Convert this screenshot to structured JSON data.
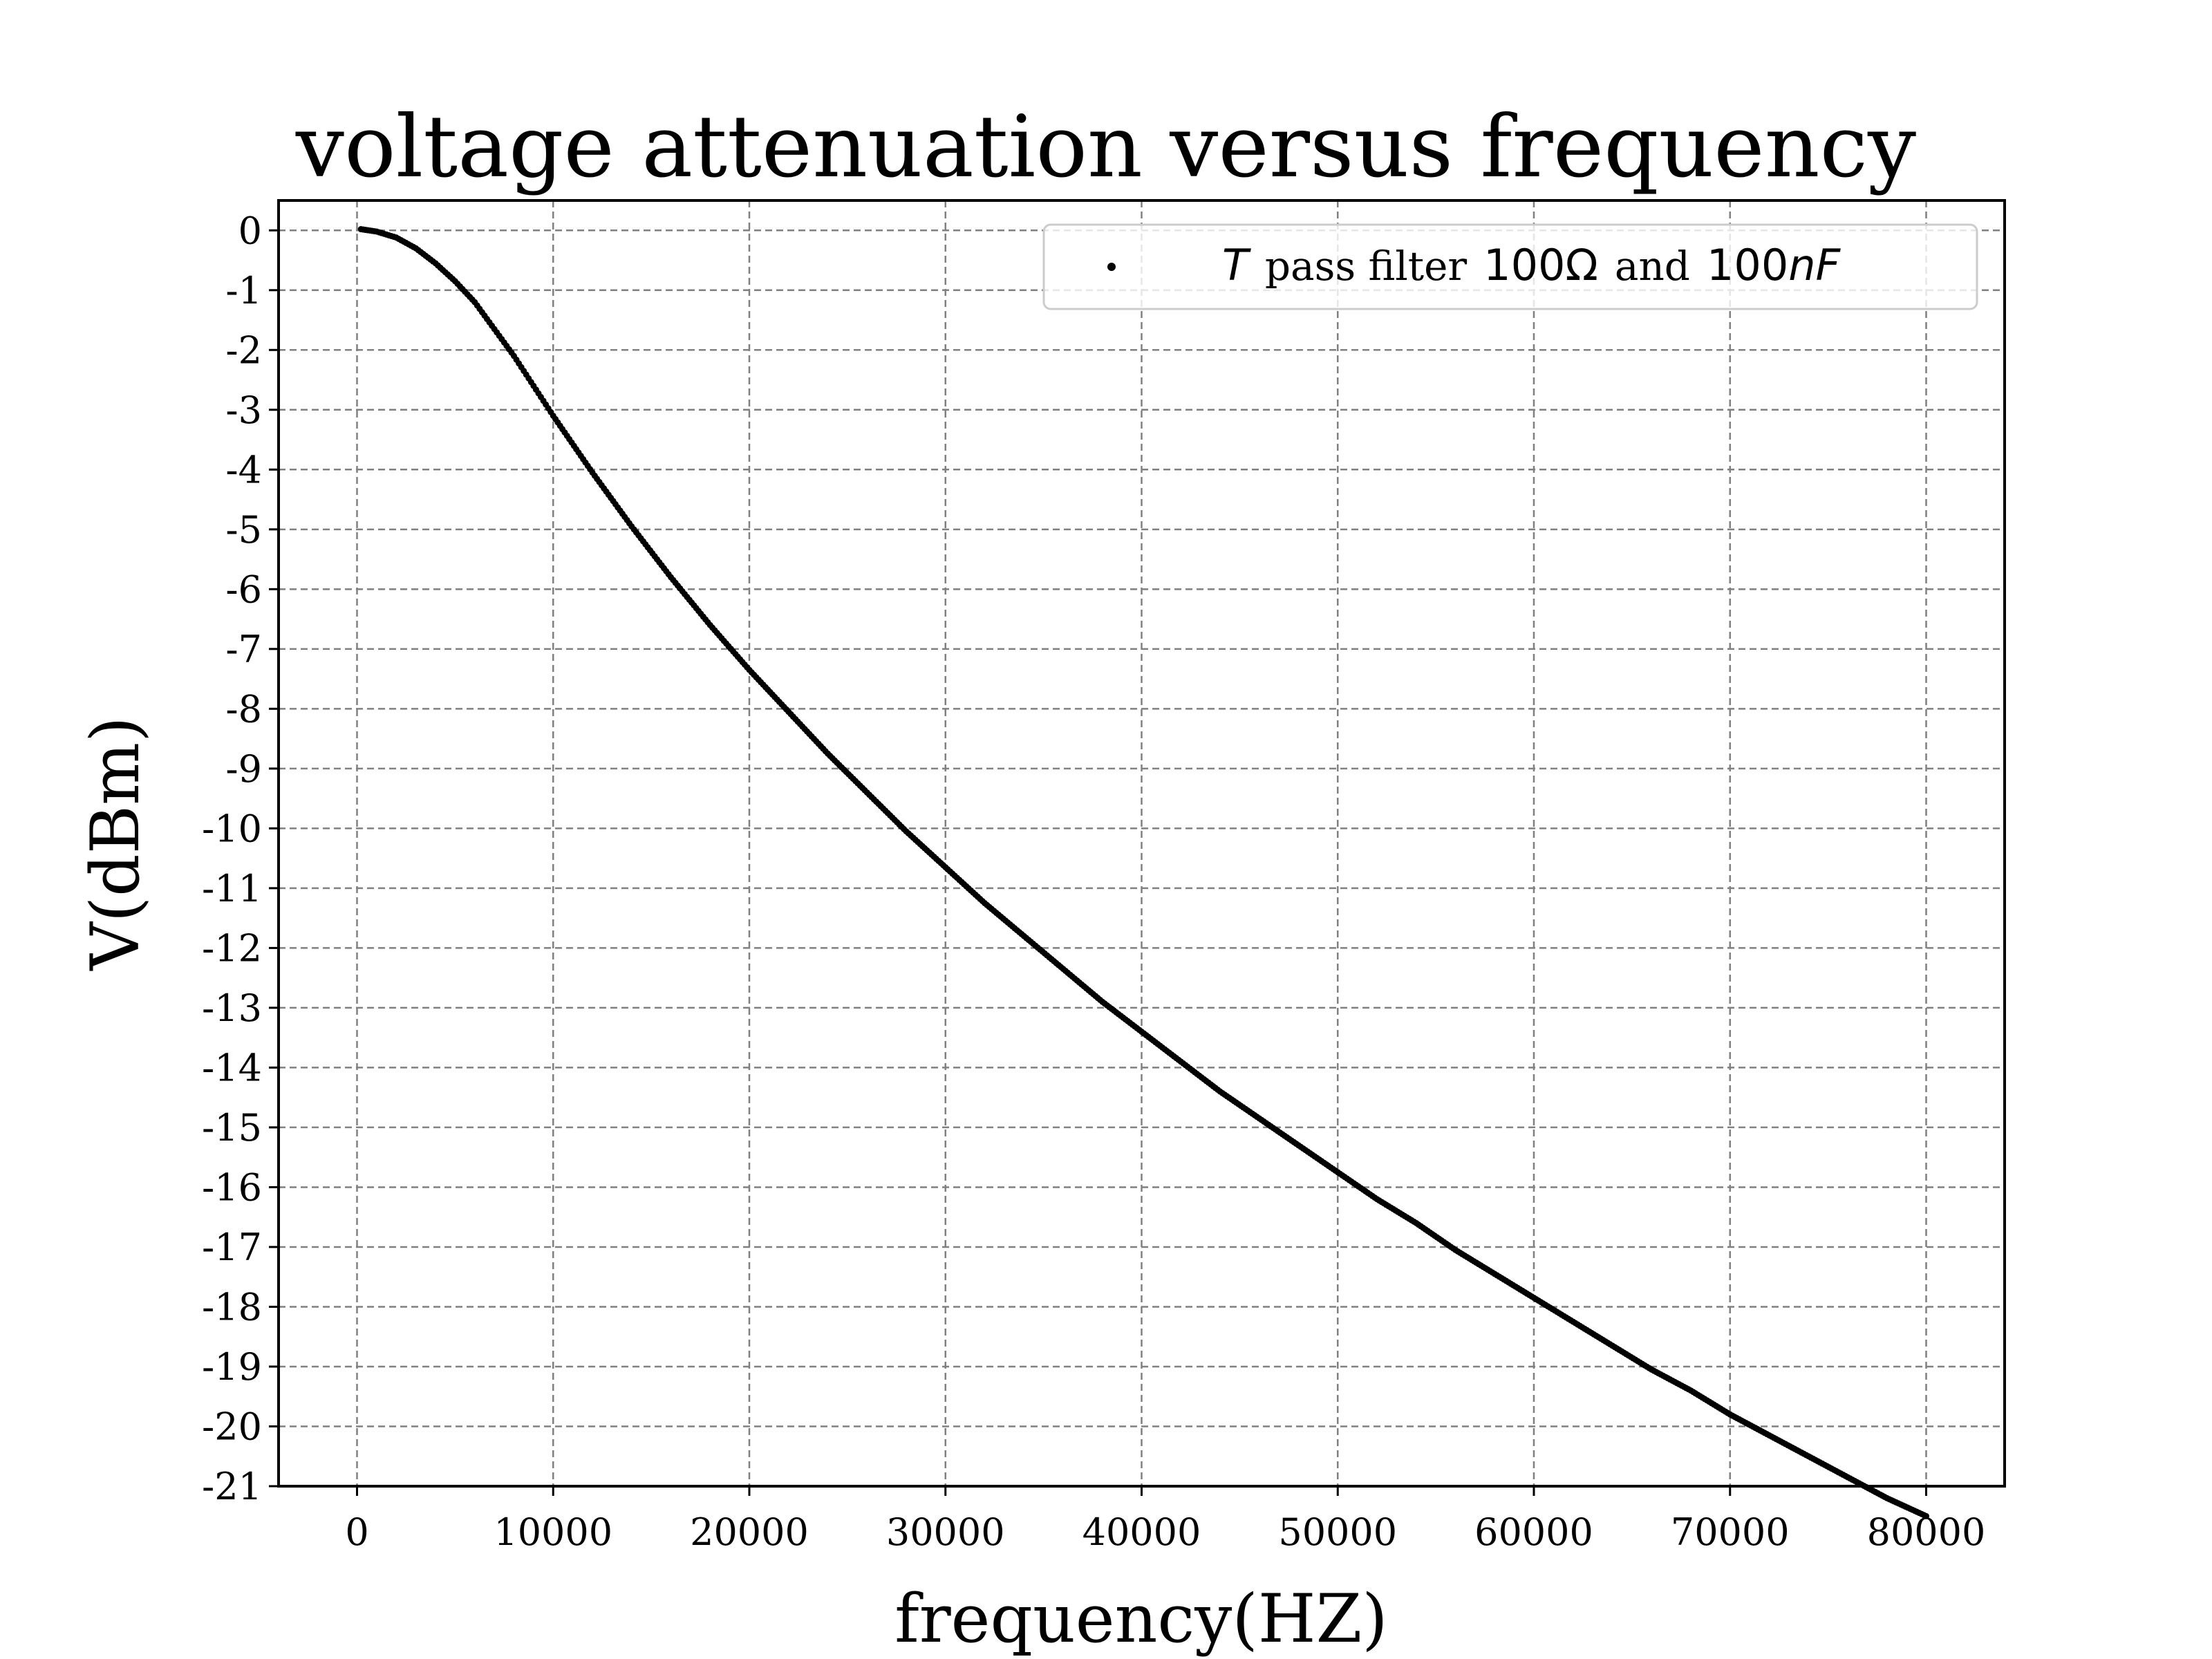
{
  "chart_data": {
    "type": "scatter",
    "title": "voltage attenuation versus frequency",
    "xlabel": "frequency(HZ)",
    "ylabel": "V(dBm)",
    "xlim": [
      -4000,
      84000
    ],
    "ylim": [
      -21,
      0.5
    ],
    "xticks": [
      0,
      10000,
      20000,
      30000,
      40000,
      50000,
      60000,
      70000,
      80000
    ],
    "xtick_labels": [
      "0",
      "10000",
      "20000",
      "30000",
      "40000",
      "50000",
      "60000",
      "70000",
      "80000"
    ],
    "yticks": [
      0,
      -1,
      -2,
      -3,
      -4,
      -5,
      -6,
      -7,
      -8,
      -9,
      -10,
      -11,
      -12,
      -13,
      -14,
      -15,
      -16,
      -17,
      -18,
      -19,
      -20,
      -21
    ],
    "ytick_labels": [
      "0",
      "-1",
      "-2",
      "-3",
      "-4",
      "-5",
      "-6",
      "-7",
      "-8",
      "-9",
      "-10",
      "-11",
      "-12",
      "-13",
      "-14",
      "-15",
      "-16",
      "-17",
      "-18",
      "-19",
      "-20",
      "-21"
    ],
    "grid": true,
    "legend_position": "top-right",
    "series": [
      {
        "name_parts": {
          "italic_symbol": "T",
          "text1": "pass filter",
          "value1": "100Ω",
          "text2": "and",
          "value2": "100",
          "value2_unit_italic": "nF"
        },
        "color": "#000000",
        "marker": "dot",
        "x": [
          200,
          1000,
          2000,
          3000,
          4000,
          5000,
          6000,
          7000,
          8000,
          9000,
          10000,
          12000,
          14000,
          16000,
          18000,
          20000,
          22000,
          24000,
          26000,
          28000,
          30000,
          32000,
          34000,
          36000,
          38000,
          40000,
          42000,
          44000,
          46000,
          48000,
          50000,
          52000,
          54000,
          56000,
          58000,
          60000,
          62000,
          64000,
          66000,
          68000,
          70000,
          72000,
          74000,
          76000,
          78000,
          80000
        ],
        "y": [
          0.02,
          -0.02,
          -0.12,
          -0.3,
          -0.55,
          -0.85,
          -1.2,
          -1.65,
          -2.1,
          -2.6,
          -3.1,
          -4.05,
          -4.95,
          -5.8,
          -6.6,
          -7.35,
          -8.05,
          -8.75,
          -9.4,
          -10.05,
          -10.65,
          -11.25,
          -11.8,
          -12.35,
          -12.9,
          -13.4,
          -13.9,
          -14.4,
          -14.85,
          -15.3,
          -15.75,
          -16.2,
          -16.6,
          -17.05,
          -17.45,
          -17.85,
          -18.25,
          -18.65,
          -19.05,
          -19.4,
          -19.8,
          -20.15,
          -20.5,
          -20.85,
          -21.2,
          -21.5
        ]
      }
    ]
  }
}
